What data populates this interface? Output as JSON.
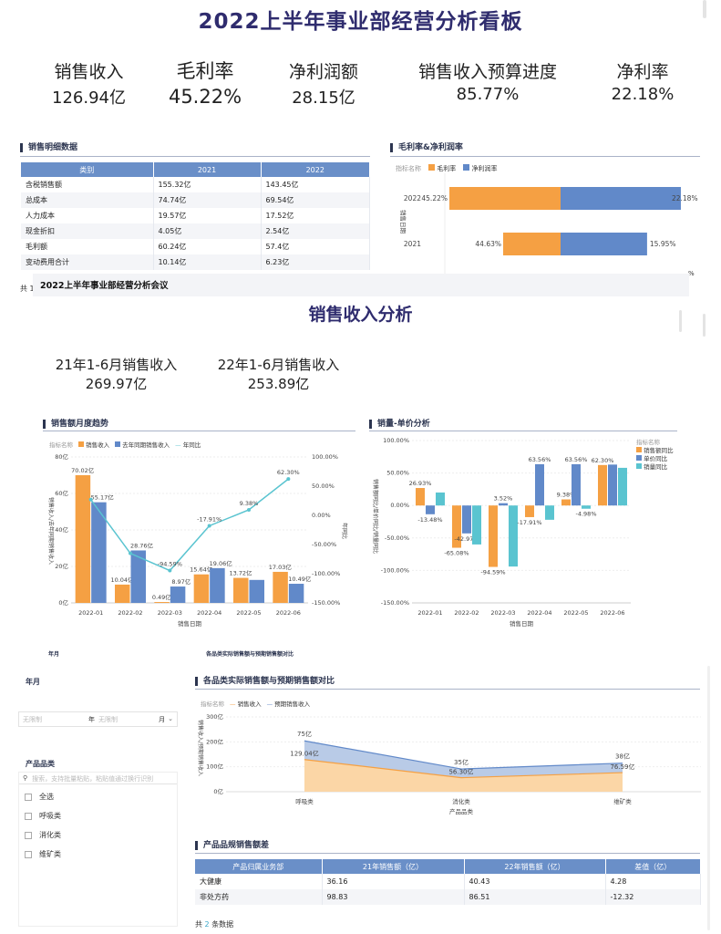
{
  "title": "2022上半年事业部经营分析看板",
  "kpis": [
    {
      "label": "销售收入",
      "value": "126.94亿"
    },
    {
      "label": "毛利率",
      "value": "45.22%"
    },
    {
      "label": "净利润额",
      "value": "28.15亿"
    },
    {
      "label": "销售收入预算进度",
      "value": "85.77%"
    },
    {
      "label": "净利率",
      "value": "22.18%"
    }
  ],
  "detail_table": {
    "title": "销售明细数据",
    "columns": [
      "类别",
      "2021",
      "2022"
    ],
    "rows": [
      [
        "含税销售额",
        "155.32亿",
        "143.45亿"
      ],
      [
        "总成本",
        "74.74亿",
        "69.54亿"
      ],
      [
        "人力成本",
        "19.57亿",
        "17.52亿"
      ],
      [
        "现金折扣",
        "4.05亿",
        "2.54亿"
      ],
      [
        "毛利额",
        "60.24亿",
        "57.4亿"
      ],
      [
        "变动费用合计",
        "10.14亿",
        "6.23亿"
      ]
    ],
    "footer_prefix": "共 1"
  },
  "overlay_title": "2022上半年事业部经营分析会议",
  "section_title": "销售收入分析",
  "sales_kpis": [
    {
      "label": "21年1-6月销售收入",
      "value": "269.97亿"
    },
    {
      "label": "22年1-6月销售收入",
      "value": "253.89亿"
    }
  ],
  "colors": {
    "orange": "#f5a043",
    "blue": "#6189c9",
    "teal": "#5ac4d0",
    "title": "#2f2c6e"
  },
  "chart_data": [
    {
      "type": "bar",
      "title": "毛利率&净利润率",
      "orientation": "horizontal",
      "legend_title": "指标名称",
      "ylabel": "销售日期",
      "categories": [
        "2022",
        "2021"
      ],
      "series": [
        {
          "name": "毛利率",
          "values": [
            45.22,
            44.63
          ],
          "labels": [
            "45.22%",
            "44.63%"
          ]
        },
        {
          "name": "净利润率",
          "values": [
            22.18,
            15.95
          ],
          "labels": [
            "22.18%",
            "15.95%"
          ]
        }
      ],
      "left_axis_min": 44.0,
      "axis_tail_label": "%"
    },
    {
      "type": "bar",
      "title": "销售额月度趋势",
      "legend_title": "指标名称",
      "xlabel": "销售日期",
      "ylabel": "销售收入/去年同期销售收入",
      "y2label": "年同比",
      "categories": [
        "2022-01",
        "2022-02",
        "2022-03",
        "2022-04",
        "2022-05",
        "2022-06"
      ],
      "series": [
        {
          "name": "销售收入",
          "values": [
            70.02,
            10.04,
            0.49,
            15.64,
            13.72,
            17.03
          ],
          "labels": [
            "70.02亿",
            "10.04亿",
            "0.49亿",
            "15.64亿",
            "13.72亿",
            "17.03亿"
          ]
        },
        {
          "name": "去年同期销售收入",
          "values": [
            55.17,
            28.76,
            8.97,
            19.06,
            12.6,
            10.49
          ],
          "labels": [
            "55.17亿",
            "28.76亿",
            "8.97亿",
            "19.06亿",
            "",
            "10.49亿"
          ]
        },
        {
          "name": "年同比",
          "type": "line",
          "values": [
            26.93,
            -65.08,
            -94.59,
            -17.91,
            9.38,
            62.3
          ],
          "labels": [
            "",
            "",
            "-94.59%",
            "-17.91%",
            "9.38%",
            "62.30%"
          ]
        }
      ],
      "ylim": [
        0,
        80
      ],
      "yticks": [
        "0亿",
        "20亿",
        "40亿",
        "60亿",
        "80亿"
      ],
      "y2lim": [
        -150,
        100
      ],
      "y2ticks": [
        "-150.00%",
        "-100.00%",
        "-50.00%",
        "0.00%",
        "50.00%",
        "100.00%"
      ]
    },
    {
      "type": "bar",
      "title": "销量-单价分析",
      "legend_title": "指标名称",
      "legend_position": "right",
      "xlabel": "销售日期",
      "ylabel": "销售额同比/单价同比/销量同比",
      "categories": [
        "2022-01",
        "2022-02",
        "2022-03",
        "2022-04",
        "2022-05",
        "2022-06"
      ],
      "series": [
        {
          "name": "销售额同比",
          "values": [
            26.93,
            -65.08,
            -94.59,
            -17.91,
            9.38,
            62.3
          ],
          "labels": [
            "26.93%",
            "-65.08%",
            "-94.59%",
            "-17.91%",
            "9.38%",
            "62.30%"
          ]
        },
        {
          "name": "单价同比",
          "values": [
            -13.48,
            -42.97,
            3.52,
            63.56,
            63.56,
            63.0
          ],
          "labels": [
            "-13.48%",
            "-42.97%",
            "3.52%",
            "63.56%",
            "63.56%",
            ""
          ]
        },
        {
          "name": "销量同比",
          "values": [
            20,
            -60,
            -94,
            -22,
            -4.98,
            58
          ],
          "labels": [
            "",
            "",
            "",
            "",
            "-4.98%",
            ""
          ]
        }
      ],
      "ylim": [
        -150,
        100
      ],
      "yticks": [
        "-150.00%",
        "-100.00%",
        "-50.00%",
        "0.00%",
        "50.00%",
        "100.00%"
      ]
    },
    {
      "type": "area",
      "stacked": true,
      "title": "各品类实际销售额与预期销售额对比",
      "legend_title": "指标名称",
      "xlabel": "产品品类",
      "ylabel": "销售收入/预期销售收入",
      "categories": [
        "呼吸类",
        "消化类",
        "维矿类"
      ],
      "series": [
        {
          "name": "销售收入",
          "values": [
            129.04,
            56.3,
            76.59
          ],
          "labels": [
            "129.04亿",
            "56.30亿",
            "76.59亿"
          ]
        },
        {
          "name": "预期销售收入",
          "values": [
            75,
            35,
            38
          ],
          "labels": [
            "75亿",
            "35亿",
            "38亿"
          ]
        }
      ],
      "ylim": [
        0,
        300
      ],
      "yticks": [
        "0亿",
        "100亿",
        "200亿",
        "300亿"
      ]
    }
  ],
  "faint_labels": {
    "left": "年月",
    "right": "各品类实际销售额与预期销售额对比"
  },
  "filters": {
    "month_label": "年月",
    "year_placeholder": "无限制",
    "year_unit": "年",
    "month_placeholder": "无限制",
    "month_unit": "月",
    "category_label": "产品品类",
    "search_placeholder": "搜索，支持批量粘贴，粘贴值通过换行识别",
    "options": [
      "全选",
      "呼吸类",
      "消化类",
      "维矿类"
    ]
  },
  "product_table": {
    "title": "产品品规销售额差",
    "columns": [
      "产品归属业务部",
      "21年销售额（亿）",
      "22年销售额（亿）",
      "差值（亿）"
    ],
    "rows": [
      [
        "大健康",
        "36.16",
        "40.43",
        "4.28"
      ],
      [
        "非处方药",
        "98.83",
        "86.51",
        "-12.32"
      ]
    ],
    "footer_prefix": "共",
    "footer_count": "2",
    "footer_suffix": "条数据"
  }
}
